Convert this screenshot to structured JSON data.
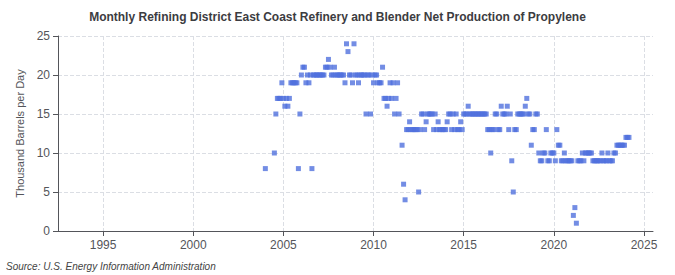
{
  "chart_data": {
    "type": "scatter",
    "title": "Monthly Refining District East Coast Refinery and Blender Net Production of Propylene",
    "ylabel": "Thousand Barrels per Day",
    "annotations": [
      "Source: U.S. Energy Information Administration"
    ],
    "marker": "square",
    "grid": true,
    "xlim": [
      1992.5,
      2025.5
    ],
    "xticks": [
      1995,
      2000,
      2005,
      2010,
      2015,
      2020,
      2025
    ],
    "ylim": [
      0,
      25
    ],
    "yticks": [
      0,
      5,
      10,
      15,
      20,
      25
    ],
    "x": [
      2004.0,
      2004.5,
      2004.583,
      2004.667,
      2004.75,
      2004.833,
      2004.917,
      2005.0,
      2005.083,
      2005.167,
      2005.25,
      2005.333,
      2005.417,
      2005.5,
      2005.583,
      2005.667,
      2005.75,
      2005.833,
      2005.917,
      2006.0,
      2006.083,
      2006.167,
      2006.25,
      2006.333,
      2006.417,
      2006.5,
      2006.583,
      2006.667,
      2006.75,
      2006.833,
      2006.917,
      2007.0,
      2007.083,
      2007.167,
      2007.25,
      2007.333,
      2007.417,
      2007.5,
      2007.583,
      2007.667,
      2007.75,
      2007.833,
      2007.917,
      2008.0,
      2008.083,
      2008.167,
      2008.25,
      2008.333,
      2008.417,
      2008.5,
      2008.583,
      2008.667,
      2008.75,
      2008.833,
      2008.917,
      2009.0,
      2009.083,
      2009.167,
      2009.25,
      2009.333,
      2009.417,
      2009.5,
      2009.583,
      2009.667,
      2009.75,
      2009.833,
      2009.917,
      2010.0,
      2010.083,
      2010.167,
      2010.25,
      2010.333,
      2010.417,
      2010.5,
      2010.583,
      2010.667,
      2010.75,
      2010.833,
      2010.917,
      2011.0,
      2011.083,
      2011.167,
      2011.25,
      2011.333,
      2011.417,
      2011.583,
      2011.667,
      2011.75,
      2011.833,
      2011.917,
      2012.0,
      2012.083,
      2012.167,
      2012.25,
      2012.333,
      2012.417,
      2012.5,
      2012.583,
      2012.667,
      2012.75,
      2012.833,
      2012.917,
      2013.0,
      2013.083,
      2013.167,
      2013.25,
      2013.333,
      2013.417,
      2013.5,
      2013.583,
      2013.667,
      2013.75,
      2013.833,
      2013.917,
      2014.0,
      2014.083,
      2014.167,
      2014.25,
      2014.333,
      2014.417,
      2014.5,
      2014.583,
      2014.667,
      2014.75,
      2014.833,
      2014.917,
      2015.0,
      2015.083,
      2015.167,
      2015.25,
      2015.333,
      2015.417,
      2015.5,
      2015.583,
      2015.667,
      2015.75,
      2015.833,
      2015.917,
      2016.0,
      2016.083,
      2016.167,
      2016.25,
      2016.333,
      2016.417,
      2016.5,
      2016.583,
      2016.667,
      2016.75,
      2016.833,
      2016.917,
      2017.0,
      2017.083,
      2017.167,
      2017.25,
      2017.333,
      2017.417,
      2017.5,
      2017.583,
      2017.667,
      2017.75,
      2017.833,
      2017.917,
      2018.0,
      2018.083,
      2018.167,
      2018.25,
      2018.333,
      2018.417,
      2018.5,
      2018.583,
      2018.667,
      2018.75,
      2018.833,
      2018.917,
      2019.0,
      2019.083,
      2019.167,
      2019.25,
      2019.333,
      2019.417,
      2019.5,
      2019.583,
      2019.667,
      2019.75,
      2019.833,
      2019.917,
      2020.0,
      2020.083,
      2020.167,
      2020.25,
      2020.333,
      2020.417,
      2020.5,
      2020.583,
      2020.667,
      2020.75,
      2020.833,
      2020.917,
      2021.0,
      2021.083,
      2021.167,
      2021.25,
      2021.333,
      2021.417,
      2021.5,
      2021.583,
      2021.667,
      2021.75,
      2021.833,
      2021.917,
      2022.0,
      2022.083,
      2022.167,
      2022.25,
      2022.333,
      2022.417,
      2022.5,
      2022.583,
      2022.667,
      2022.75,
      2022.833,
      2022.917,
      2023.0,
      2023.083,
      2023.167,
      2023.25,
      2023.333,
      2023.417,
      2023.5,
      2023.583,
      2023.667,
      2023.75,
      2023.833,
      2023.917,
      2024.0,
      2024.083,
      2024.167
    ],
    "values": [
      8,
      10,
      15,
      17,
      17,
      17,
      19,
      17,
      16,
      17,
      16,
      17,
      19,
      19,
      19,
      19,
      19,
      8,
      15,
      20,
      21,
      21,
      19,
      20,
      19,
      20,
      8,
      20,
      20,
      20,
      20,
      20,
      20,
      20,
      20,
      21,
      21,
      22,
      21,
      20,
      20,
      21,
      20,
      20,
      20,
      20,
      20,
      20,
      19,
      24,
      23,
      20,
      20,
      19,
      24,
      20,
      20,
      19,
      20,
      20,
      20,
      20,
      15,
      20,
      20,
      15,
      20,
      19,
      20,
      20,
      19,
      19,
      19,
      21,
      17,
      17,
      16,
      17,
      19,
      17,
      19,
      15,
      17,
      19,
      15,
      11,
      6,
      4,
      13,
      13,
      14,
      13,
      13,
      13,
      13,
      13,
      5,
      13,
      15,
      15,
      13,
      14,
      15,
      15,
      15,
      15,
      13,
      15,
      13,
      14,
      13,
      13,
      13,
      13,
      13,
      14,
      15,
      15,
      13,
      15,
      13,
      15,
      13,
      13,
      14,
      13,
      15,
      15,
      15,
      16,
      15,
      15,
      15,
      15,
      15,
      15,
      15,
      15,
      15,
      15,
      15,
      15,
      13,
      13,
      10,
      13,
      13,
      15,
      15,
      13,
      13,
      16,
      15,
      15,
      15,
      16,
      13,
      15,
      9,
      5,
      13,
      13,
      15,
      15,
      15,
      15,
      15,
      16,
      17,
      15,
      15,
      11,
      13,
      13,
      15,
      15,
      10,
      9,
      9,
      10,
      10,
      13,
      9,
      9,
      10,
      10,
      10,
      9,
      13,
      11,
      11,
      9,
      9,
      10,
      9,
      9,
      9,
      9,
      9,
      2,
      3,
      1,
      9,
      9,
      9,
      10,
      9,
      10,
      10,
      10,
      10,
      10,
      9,
      9,
      9,
      9,
      9,
      9,
      10,
      9,
      9,
      9,
      10,
      9,
      9,
      9,
      10,
      10,
      11,
      11,
      11,
      11,
      11,
      11,
      12,
      12,
      12
    ]
  }
}
